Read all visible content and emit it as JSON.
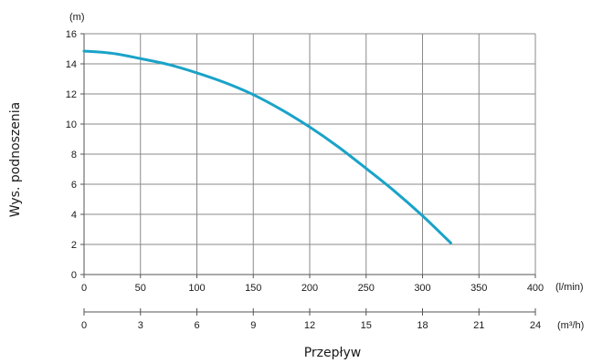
{
  "chart_data": {
    "type": "line",
    "title": "",
    "ylabel": "Wys. podnoszenia",
    "xlabel": "Przepływ",
    "y_unit": "(m)",
    "x_unit": "(l/min)",
    "x2_unit": "(m³/h)",
    "ylim": [
      0,
      16
    ],
    "xlim": [
      0,
      400
    ],
    "x2lim": [
      0,
      24
    ],
    "y_ticks": [
      "0",
      "2",
      "4",
      "6",
      "8",
      "10",
      "12",
      "14",
      "16"
    ],
    "x_ticks": [
      "0",
      "50",
      "100",
      "150",
      "200",
      "250",
      "300",
      "350",
      "400"
    ],
    "x2_ticks": [
      "0",
      "3",
      "6",
      "9",
      "12",
      "15",
      "18",
      "21",
      "24"
    ],
    "grid": true,
    "curve_color": "#1aa3c8",
    "series": [
      {
        "x": [
          0,
          25,
          50,
          75,
          100,
          125,
          150,
          175,
          200,
          225,
          250,
          275,
          300,
          325
        ],
        "values": [
          14.85,
          14.7,
          14.35,
          13.95,
          13.4,
          12.75,
          11.95,
          10.95,
          9.8,
          8.5,
          7.05,
          5.55,
          3.9,
          2.1
        ]
      }
    ]
  }
}
